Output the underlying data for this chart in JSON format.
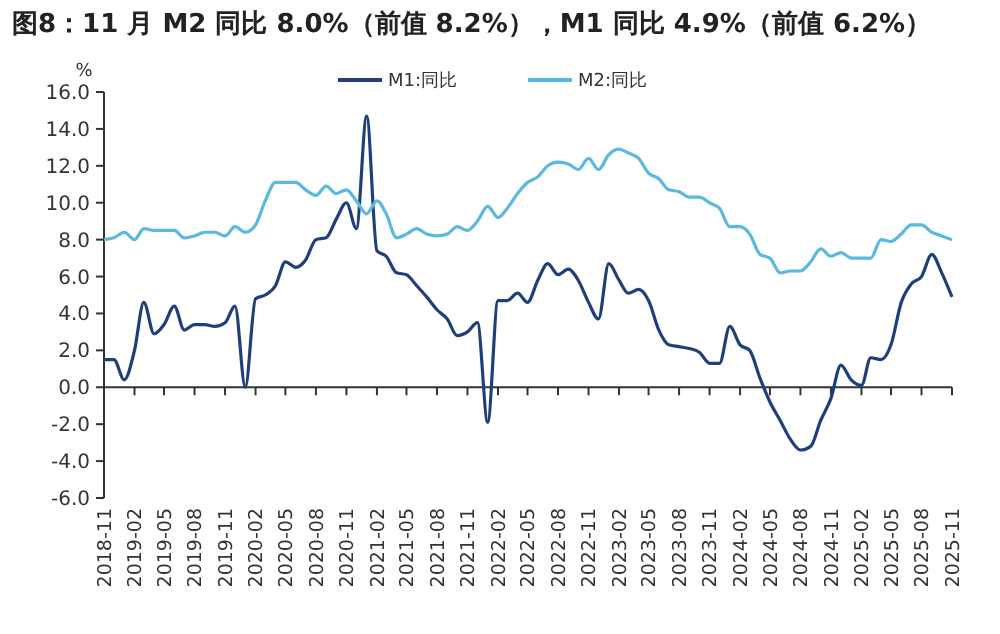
{
  "chart_data": {
    "type": "line",
    "title": "图8：11 月 M2 同比 8.0%（前值 8.2%），M1 同比 4.9%（前值 6.2%）",
    "ylabel": "%",
    "x": [
      "2018-11",
      "2018-12",
      "2019-01",
      "2019-02",
      "2019-03",
      "2019-04",
      "2019-05",
      "2019-06",
      "2019-07",
      "2019-08",
      "2019-09",
      "2019-10",
      "2019-11",
      "2019-12",
      "2020-01",
      "2020-02",
      "2020-03",
      "2020-04",
      "2020-05",
      "2020-06",
      "2020-07",
      "2020-08",
      "2020-09",
      "2020-10",
      "2020-11",
      "2020-12",
      "2021-01",
      "2021-02",
      "2021-03",
      "2021-04",
      "2021-05",
      "2021-06",
      "2021-07",
      "2021-08",
      "2021-09",
      "2021-10",
      "2021-11",
      "2021-12",
      "2022-01",
      "2022-02",
      "2022-03",
      "2022-04",
      "2022-05",
      "2022-06",
      "2022-07",
      "2022-08",
      "2022-09",
      "2022-10",
      "2022-11",
      "2022-12",
      "2023-01",
      "2023-02",
      "2023-03",
      "2023-04",
      "2023-05",
      "2023-06",
      "2023-07",
      "2023-08",
      "2023-09",
      "2023-10",
      "2023-11",
      "2023-12",
      "2024-01",
      "2024-02",
      "2024-03",
      "2024-04",
      "2024-05",
      "2024-06",
      "2024-07",
      "2024-08",
      "2024-09",
      "2024-10",
      "2024-11",
      "2024-12",
      "2025-01",
      "2025-02",
      "2025-03",
      "2025-04",
      "2025-05",
      "2025-06",
      "2025-07",
      "2025-08",
      "2025-09",
      "2025-10",
      "2025-11"
    ],
    "series": [
      {
        "name": "M1:同比",
        "color": "#1f3f7a",
        "values": [
          1.5,
          1.5,
          0.4,
          2.0,
          4.6,
          2.9,
          3.4,
          4.4,
          3.1,
          3.4,
          3.4,
          3.3,
          3.5,
          4.4,
          0.0,
          4.8,
          5.0,
          5.5,
          6.8,
          6.5,
          6.9,
          8.0,
          8.1,
          9.1,
          10.0,
          8.6,
          14.7,
          7.4,
          7.1,
          6.2,
          6.1,
          5.5,
          4.9,
          4.2,
          3.7,
          2.8,
          3.0,
          3.5,
          -1.9,
          4.7,
          4.7,
          5.1,
          4.6,
          5.8,
          6.7,
          6.1,
          6.4,
          5.8,
          4.6,
          3.7,
          6.7,
          5.8,
          5.1,
          5.3,
          4.7,
          3.1,
          2.3,
          2.2,
          2.1,
          1.9,
          1.3,
          1.3,
          3.3,
          2.3,
          2.0,
          0.5,
          -0.8,
          -1.8,
          -2.8,
          -3.4,
          -3.2,
          -1.8,
          -0.6,
          1.2,
          0.4,
          0.1,
          1.6,
          1.5,
          2.3,
          4.6,
          5.6,
          6.0,
          7.2,
          6.2,
          4.9
        ]
      },
      {
        "name": "M2:同比",
        "color": "#5bb8de",
        "values": [
          8.0,
          8.1,
          8.4,
          8.0,
          8.6,
          8.5,
          8.5,
          8.5,
          8.1,
          8.2,
          8.4,
          8.4,
          8.2,
          8.7,
          8.4,
          8.8,
          10.1,
          11.1,
          11.1,
          11.1,
          10.7,
          10.4,
          10.9,
          10.5,
          10.7,
          10.1,
          9.4,
          10.1,
          9.4,
          8.1,
          8.3,
          8.6,
          8.3,
          8.2,
          8.3,
          8.7,
          8.5,
          9.0,
          9.8,
          9.2,
          9.7,
          10.5,
          11.1,
          11.4,
          12.0,
          12.2,
          12.1,
          11.8,
          12.4,
          11.8,
          12.6,
          12.9,
          12.7,
          12.4,
          11.6,
          11.3,
          10.7,
          10.6,
          10.3,
          10.3,
          10.0,
          9.7,
          8.7,
          8.7,
          8.3,
          7.2,
          7.0,
          6.2,
          6.3,
          6.3,
          6.8,
          7.5,
          7.1,
          7.3,
          7.0,
          7.0,
          7.0,
          8.0,
          7.9,
          8.3,
          8.8,
          8.8,
          8.4,
          8.2,
          8.0
        ]
      }
    ],
    "xlim": [
      "2018-11",
      "2025-11"
    ],
    "xticks": [
      "2018-11",
      "2019-02",
      "2019-05",
      "2019-08",
      "2019-11",
      "2020-02",
      "2020-05",
      "2020-08",
      "2020-11",
      "2021-02",
      "2021-05",
      "2021-08",
      "2021-11",
      "2022-02",
      "2022-05",
      "2022-08",
      "2022-11",
      "2023-02",
      "2023-05",
      "2023-08",
      "2023-11",
      "2024-02",
      "2024-05",
      "2024-08",
      "2024-11",
      "2025-02",
      "2025-05",
      "2025-08",
      "2025-11"
    ],
    "ylim": [
      -6,
      16
    ],
    "yticks": [
      {
        "value": -6,
        "label": "-6.0"
      },
      {
        "value": -4,
        "label": "-4.0"
      },
      {
        "value": -2,
        "label": "-2.0"
      },
      {
        "value": 0,
        "label": "0.0"
      },
      {
        "value": 2,
        "label": "2.0"
      },
      {
        "value": 4,
        "label": "4.0"
      },
      {
        "value": 6,
        "label": "6.0"
      },
      {
        "value": 8,
        "label": "8.0"
      },
      {
        "value": 10,
        "label": "10.0"
      },
      {
        "value": 12,
        "label": "12.0"
      },
      {
        "value": 14,
        "label": "14.0"
      },
      {
        "value": 16,
        "label": "16.0"
      }
    ],
    "legend": "top",
    "marker": "none",
    "line_style": "solid"
  }
}
